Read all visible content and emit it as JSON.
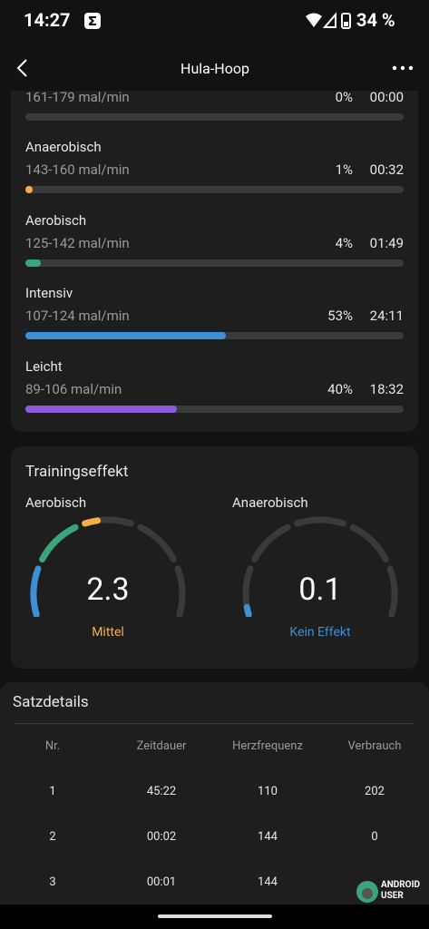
{
  "status_bar": {
    "time": "14:27",
    "battery": "34 %"
  },
  "header": {
    "title": "Hula-Hoop"
  },
  "zones": [
    {
      "range": "161-179 mal/min",
      "percent": "0%",
      "duration": "00:00"
    },
    {
      "name": "Anaerobisch",
      "range": "143-160 mal/min",
      "percent": "1%",
      "duration": "00:32",
      "color": "#f5b041"
    },
    {
      "name": "Aerobisch",
      "range": "125-142 mal/min",
      "percent": "4%",
      "duration": "01:49",
      "color": "#3aa57a"
    },
    {
      "name": "Intensiv",
      "range": "107-124 mal/min",
      "percent": "53%",
      "duration": "24:11",
      "color": "#3d8fd6"
    },
    {
      "name": "Leicht",
      "range": "89-106 mal/min",
      "percent": "40%",
      "duration": "18:32",
      "color": "#8e5ae0"
    }
  ],
  "training_effect": {
    "title": "Trainingseffekt",
    "aerobic": {
      "label": "Aerobisch",
      "value": "2.3",
      "rating": "Mittel"
    },
    "anaerobic": {
      "label": "Anaerobisch",
      "value": "0.1",
      "rating": "Kein Effekt"
    }
  },
  "set_details": {
    "title": "Satzdetails",
    "columns": [
      "Nr.",
      "Zeitdauer",
      "Herzfrequenz",
      "Verbrauch"
    ],
    "rows": [
      [
        "1",
        "45:22",
        "110",
        "202"
      ],
      [
        "2",
        "00:02",
        "144",
        "0"
      ],
      [
        "3",
        "00:01",
        "144",
        ""
      ]
    ]
  },
  "watermark": [
    "ANDROID",
    "USER"
  ]
}
